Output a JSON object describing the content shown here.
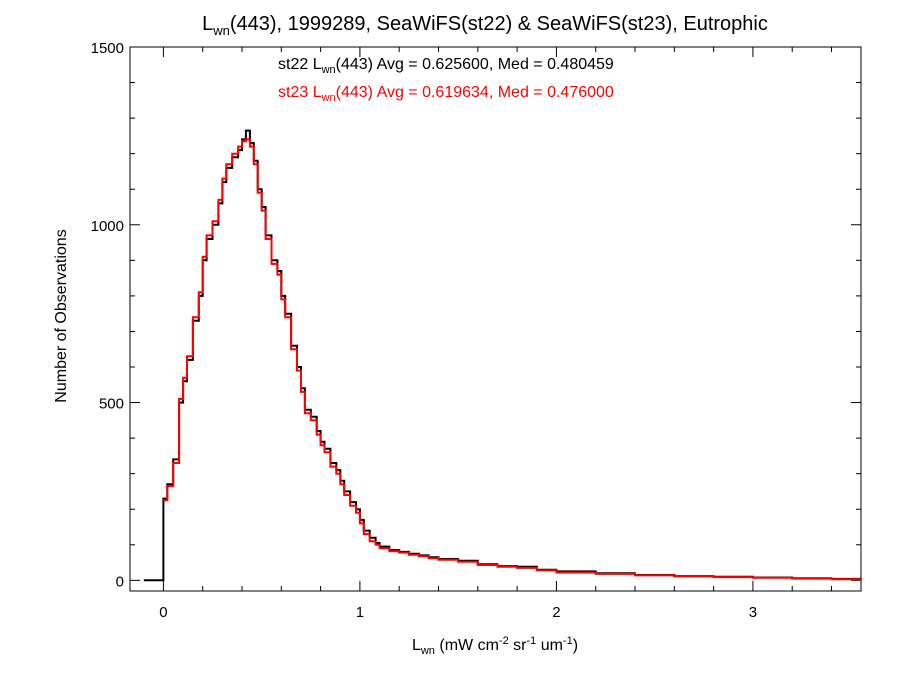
{
  "chart_data": {
    "type": "line",
    "title": {
      "pre": "L",
      "sub": "wn",
      "post": "(443), 1999289, SeaWiFS(st22) & SeaWiFS(st23), Eutrophic"
    },
    "xlabel": {
      "pre": "L",
      "sub": "wn",
      "mid1": " (mW cm",
      "sup1": "-2",
      "mid2": " sr",
      "sup2": "-1",
      "mid3": " um",
      "sup3": "-1",
      "post": ")"
    },
    "ylabel": "Number of Observations",
    "xlim": [
      -0.17,
      3.55
    ],
    "ylim": [
      -30,
      1500
    ],
    "x_ticks": [
      0,
      1,
      2,
      3
    ],
    "x_tick_labels": [
      "0",
      "1",
      "2",
      "3"
    ],
    "y_ticks": [
      0,
      500,
      1000,
      1500
    ],
    "y_tick_labels": [
      "0",
      "500",
      "1000",
      "1500"
    ],
    "grid": false,
    "annotations": [
      {
        "pre": "st22 L",
        "sub": "wn",
        "post": "(443) Avg = 0.625600, Med = 0.480459",
        "color": "#000000"
      },
      {
        "pre": "st23 L",
        "sub": "wn",
        "post": "(443) Avg = 0.619634, Med = 0.476000",
        "color": "#ff0000"
      }
    ],
    "series": [
      {
        "color": "#000000",
        "x": [
          -0.1,
          -0.02,
          0.0,
          0.02,
          0.05,
          0.08,
          0.1,
          0.12,
          0.15,
          0.18,
          0.2,
          0.22,
          0.25,
          0.28,
          0.3,
          0.32,
          0.35,
          0.38,
          0.4,
          0.42,
          0.44,
          0.46,
          0.48,
          0.5,
          0.52,
          0.55,
          0.58,
          0.6,
          0.62,
          0.65,
          0.68,
          0.7,
          0.72,
          0.75,
          0.78,
          0.8,
          0.82,
          0.85,
          0.88,
          0.9,
          0.92,
          0.95,
          0.98,
          1.0,
          1.02,
          1.05,
          1.08,
          1.1,
          1.15,
          1.2,
          1.25,
          1.3,
          1.35,
          1.4,
          1.5,
          1.6,
          1.7,
          1.8,
          1.9,
          2.0,
          2.2,
          2.4,
          2.6,
          2.8,
          3.0,
          3.2,
          3.4,
          3.55
        ],
        "y": [
          0,
          0,
          230,
          270,
          340,
          500,
          560,
          620,
          730,
          800,
          900,
          960,
          1000,
          1060,
          1120,
          1160,
          1190,
          1210,
          1240,
          1265,
          1230,
          1180,
          1100,
          1050,
          970,
          900,
          870,
          800,
          750,
          660,
          600,
          540,
          480,
          460,
          420,
          390,
          370,
          330,
          310,
          280,
          250,
          220,
          200,
          170,
          140,
          120,
          105,
          95,
          85,
          80,
          75,
          70,
          65,
          60,
          55,
          45,
          40,
          38,
          30,
          25,
          20,
          15,
          12,
          10,
          8,
          6,
          4,
          3
        ]
      },
      {
        "color": "#ff0000",
        "x": [
          0.0,
          0.02,
          0.05,
          0.08,
          0.1,
          0.12,
          0.15,
          0.18,
          0.2,
          0.22,
          0.25,
          0.28,
          0.3,
          0.32,
          0.35,
          0.38,
          0.4,
          0.42,
          0.44,
          0.46,
          0.48,
          0.5,
          0.52,
          0.55,
          0.58,
          0.6,
          0.62,
          0.65,
          0.68,
          0.7,
          0.72,
          0.75,
          0.78,
          0.8,
          0.82,
          0.85,
          0.88,
          0.9,
          0.92,
          0.95,
          0.98,
          1.0,
          1.02,
          1.05,
          1.08,
          1.1,
          1.15,
          1.2,
          1.25,
          1.3,
          1.35,
          1.4,
          1.5,
          1.6,
          1.7,
          1.8,
          1.9,
          2.0,
          2.2,
          2.4,
          2.6,
          2.8,
          3.0,
          3.2,
          3.4,
          3.55
        ],
        "y": [
          225,
          265,
          330,
          510,
          570,
          630,
          740,
          810,
          910,
          970,
          1010,
          1070,
          1130,
          1170,
          1200,
          1220,
          1235,
          1240,
          1220,
          1170,
          1090,
          1040,
          960,
          890,
          860,
          790,
          740,
          650,
          590,
          530,
          470,
          450,
          410,
          380,
          360,
          320,
          300,
          270,
          240,
          210,
          190,
          160,
          130,
          110,
          100,
          90,
          82,
          78,
          72,
          68,
          62,
          58,
          52,
          43,
          38,
          35,
          28,
          22,
          18,
          14,
          11,
          9,
          7,
          5,
          3,
          2
        ]
      }
    ]
  }
}
